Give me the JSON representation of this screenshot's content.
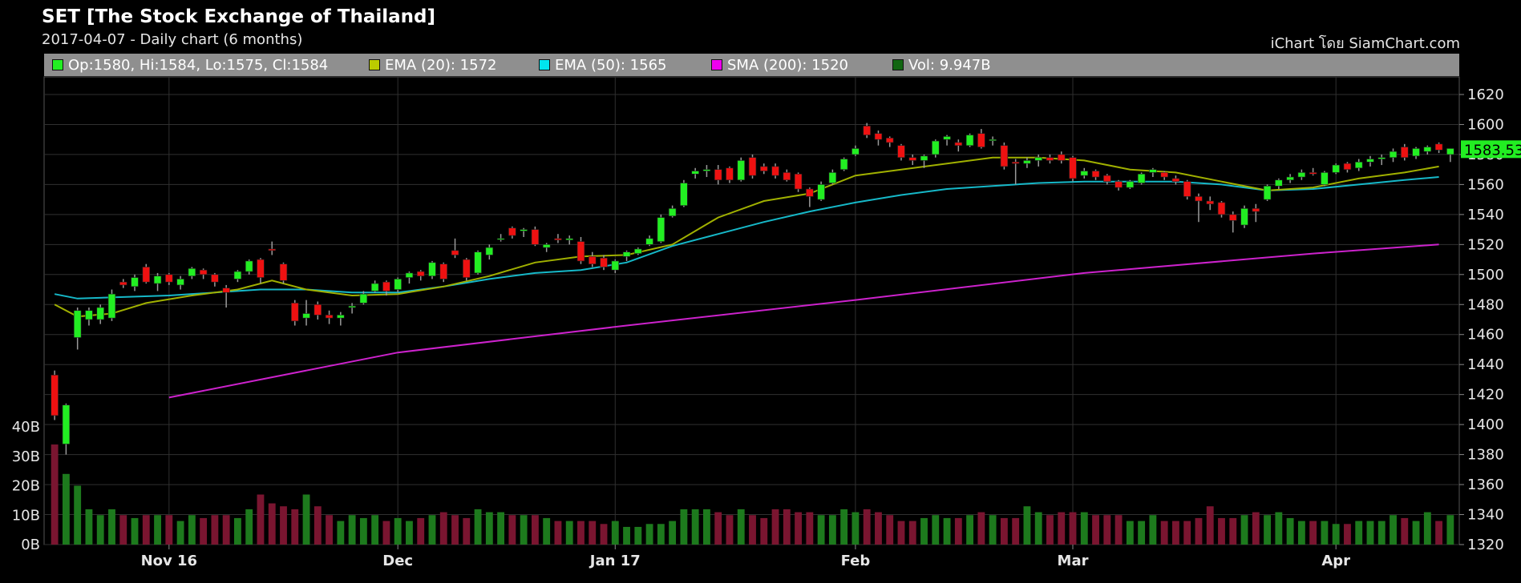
{
  "header": {
    "title": "SET [The Stock Exchange of Thailand]",
    "subtitle": "2017-04-07 - Daily chart (6 months)",
    "credit": "iChart โดย SiamChart.com"
  },
  "legend": [
    {
      "label": "Op:1580, Hi:1584, Lo:1575, Cl:1584",
      "color": "#22ee22"
    },
    {
      "label": "EMA (20): 1572",
      "color": "#bbcc00"
    },
    {
      "label": "EMA (50): 1565",
      "color": "#00e5ee"
    },
    {
      "label": "SMA (200): 1520",
      "color": "#ee00ee"
    },
    {
      "label": "Vol: 9.947B",
      "color": "#116611"
    }
  ],
  "price_tag": "1583.53",
  "colors": {
    "up": "#22ee22",
    "down": "#ee1111",
    "vol_up": "#1d7a1d",
    "vol_down": "#7a1530",
    "ema20": "#a0b000",
    "ema50": "#16b8c8",
    "sma200": "#cc22cc",
    "grid": "#303030",
    "price_tag_bg": "#22ee22"
  },
  "chart_data": {
    "type": "candlestick",
    "ylim": [
      1320,
      1620
    ],
    "y_ticks": [
      "1320",
      "1340",
      "1360",
      "1380",
      "1400",
      "1420",
      "1440",
      "1460",
      "1480",
      "1500",
      "1520",
      "1540",
      "1560",
      "1580",
      "1600",
      "1620"
    ],
    "vol_ticks": [
      "0B",
      "10B",
      "20B",
      "30B",
      "40B"
    ],
    "vol_lim": [
      0,
      40
    ],
    "x_ticks": [
      {
        "label": "Nov 16",
        "index": 10
      },
      {
        "label": "Dec",
        "index": 30
      },
      {
        "label": "Jan 17",
        "index": 49
      },
      {
        "label": "Feb",
        "index": 70
      },
      {
        "label": "Mar",
        "index": 89
      },
      {
        "label": "Apr",
        "index": 112
      }
    ],
    "candles": [
      {
        "o": 1433,
        "h": 1436,
        "l": 1403,
        "c": 1406,
        "v": 34
      },
      {
        "o": 1387,
        "h": 1414,
        "l": 1380,
        "c": 1413,
        "v": 24
      },
      {
        "o": 1458,
        "h": 1478,
        "l": 1450,
        "c": 1476,
        "v": 20
      },
      {
        "o": 1470,
        "h": 1478,
        "l": 1466,
        "c": 1476,
        "v": 12
      },
      {
        "o": 1470,
        "h": 1480,
        "l": 1467,
        "c": 1478,
        "v": 10
      },
      {
        "o": 1471,
        "h": 1490,
        "l": 1469,
        "c": 1487,
        "v": 12
      },
      {
        "o": 1495,
        "h": 1497,
        "l": 1491,
        "c": 1493,
        "v": 10
      },
      {
        "o": 1492,
        "h": 1500,
        "l": 1489,
        "c": 1498,
        "v": 9
      },
      {
        "o": 1505,
        "h": 1507,
        "l": 1494,
        "c": 1495,
        "v": 10
      },
      {
        "o": 1494,
        "h": 1501,
        "l": 1489,
        "c": 1499,
        "v": 10
      },
      {
        "o": 1500,
        "h": 1501,
        "l": 1493,
        "c": 1495,
        "v": 10
      },
      {
        "o": 1493,
        "h": 1499,
        "l": 1490,
        "c": 1497,
        "v": 8
      },
      {
        "o": 1499,
        "h": 1505,
        "l": 1497,
        "c": 1504,
        "v": 10
      },
      {
        "o": 1503,
        "h": 1504,
        "l": 1497,
        "c": 1500,
        "v": 9
      },
      {
        "o": 1500,
        "h": 1501,
        "l": 1492,
        "c": 1495,
        "v": 10
      },
      {
        "o": 1491,
        "h": 1493,
        "l": 1478,
        "c": 1488,
        "v": 10
      },
      {
        "o": 1497,
        "h": 1503,
        "l": 1495,
        "c": 1502,
        "v": 9
      },
      {
        "o": 1502,
        "h": 1510,
        "l": 1500,
        "c": 1509,
        "v": 12
      },
      {
        "o": 1510,
        "h": 1511,
        "l": 1494,
        "c": 1498,
        "v": 17
      },
      {
        "o": 1517,
        "h": 1522,
        "l": 1513,
        "c": 1516,
        "v": 14
      },
      {
        "o": 1507,
        "h": 1508,
        "l": 1494,
        "c": 1496,
        "v": 13
      },
      {
        "o": 1481,
        "h": 1483,
        "l": 1466,
        "c": 1469,
        "v": 12
      },
      {
        "o": 1471,
        "h": 1483,
        "l": 1466,
        "c": 1474,
        "v": 17
      },
      {
        "o": 1480,
        "h": 1482,
        "l": 1470,
        "c": 1473,
        "v": 13
      },
      {
        "o": 1473,
        "h": 1476,
        "l": 1467,
        "c": 1471,
        "v": 10
      },
      {
        "o": 1471,
        "h": 1475,
        "l": 1466,
        "c": 1473,
        "v": 8
      },
      {
        "o": 1478,
        "h": 1481,
        "l": 1474,
        "c": 1479,
        "v": 10
      },
      {
        "o": 1481,
        "h": 1489,
        "l": 1480,
        "c": 1487,
        "v": 9
      },
      {
        "o": 1489,
        "h": 1496,
        "l": 1488,
        "c": 1494,
        "v": 10
      },
      {
        "o": 1495,
        "h": 1496,
        "l": 1486,
        "c": 1489,
        "v": 8
      },
      {
        "o": 1490,
        "h": 1498,
        "l": 1488,
        "c": 1497,
        "v": 9
      },
      {
        "o": 1498,
        "h": 1502,
        "l": 1494,
        "c": 1501,
        "v": 8
      },
      {
        "o": 1502,
        "h": 1503,
        "l": 1496,
        "c": 1499,
        "v": 9
      },
      {
        "o": 1499,
        "h": 1509,
        "l": 1497,
        "c": 1508,
        "v": 10
      },
      {
        "o": 1507,
        "h": 1508,
        "l": 1495,
        "c": 1497,
        "v": 11
      },
      {
        "o": 1516,
        "h": 1524,
        "l": 1511,
        "c": 1513,
        "v": 10
      },
      {
        "o": 1510,
        "h": 1511,
        "l": 1496,
        "c": 1498,
        "v": 9
      },
      {
        "o": 1501,
        "h": 1516,
        "l": 1500,
        "c": 1515,
        "v": 12
      },
      {
        "o": 1513,
        "h": 1520,
        "l": 1510,
        "c": 1518,
        "v": 11
      },
      {
        "o": 1524,
        "h": 1527,
        "l": 1522,
        "c": 1524,
        "v": 11
      },
      {
        "o": 1531,
        "h": 1532,
        "l": 1524,
        "c": 1526,
        "v": 10
      },
      {
        "o": 1529,
        "h": 1531,
        "l": 1525,
        "c": 1530,
        "v": 10
      },
      {
        "o": 1530,
        "h": 1532,
        "l": 1519,
        "c": 1520,
        "v": 10
      },
      {
        "o": 1518,
        "h": 1521,
        "l": 1515,
        "c": 1520,
        "v": 9
      },
      {
        "o": 1524,
        "h": 1527,
        "l": 1521,
        "c": 1523,
        "v": 8
      },
      {
        "o": 1523,
        "h": 1526,
        "l": 1520,
        "c": 1524,
        "v": 8
      },
      {
        "o": 1522,
        "h": 1525,
        "l": 1507,
        "c": 1509,
        "v": 8
      },
      {
        "o": 1512,
        "h": 1515,
        "l": 1505,
        "c": 1507,
        "v": 8
      },
      {
        "o": 1511,
        "h": 1513,
        "l": 1503,
        "c": 1505,
        "v": 7
      },
      {
        "o": 1503,
        "h": 1510,
        "l": 1501,
        "c": 1509,
        "v": 8
      },
      {
        "o": 1512,
        "h": 1516,
        "l": 1509,
        "c": 1515,
        "v": 6
      },
      {
        "o": 1514,
        "h": 1518,
        "l": 1513,
        "c": 1517,
        "v": 6
      },
      {
        "o": 1520,
        "h": 1526,
        "l": 1519,
        "c": 1524,
        "v": 7
      },
      {
        "o": 1522,
        "h": 1540,
        "l": 1521,
        "c": 1538,
        "v": 7
      },
      {
        "o": 1539,
        "h": 1546,
        "l": 1538,
        "c": 1544,
        "v": 8
      },
      {
        "o": 1546,
        "h": 1563,
        "l": 1545,
        "c": 1561,
        "v": 12
      },
      {
        "o": 1567,
        "h": 1571,
        "l": 1564,
        "c": 1569,
        "v": 12
      },
      {
        "o": 1569,
        "h": 1573,
        "l": 1565,
        "c": 1570,
        "v": 12
      },
      {
        "o": 1570,
        "h": 1573,
        "l": 1560,
        "c": 1563,
        "v": 11
      },
      {
        "o": 1571,
        "h": 1572,
        "l": 1561,
        "c": 1563,
        "v": 10
      },
      {
        "o": 1563,
        "h": 1578,
        "l": 1562,
        "c": 1576,
        "v": 12
      },
      {
        "o": 1578,
        "h": 1580,
        "l": 1564,
        "c": 1566,
        "v": 10
      },
      {
        "o": 1572,
        "h": 1574,
        "l": 1567,
        "c": 1569,
        "v": 9
      },
      {
        "o": 1572,
        "h": 1574,
        "l": 1564,
        "c": 1566,
        "v": 12
      },
      {
        "o": 1568,
        "h": 1570,
        "l": 1562,
        "c": 1563,
        "v": 12
      },
      {
        "o": 1567,
        "h": 1568,
        "l": 1555,
        "c": 1557,
        "v": 11
      },
      {
        "o": 1557,
        "h": 1558,
        "l": 1545,
        "c": 1552,
        "v": 11
      },
      {
        "o": 1550,
        "h": 1562,
        "l": 1549,
        "c": 1560,
        "v": 10
      },
      {
        "o": 1561,
        "h": 1570,
        "l": 1560,
        "c": 1568,
        "v": 10
      },
      {
        "o": 1570,
        "h": 1578,
        "l": 1569,
        "c": 1577,
        "v": 12
      },
      {
        "o": 1580,
        "h": 1586,
        "l": 1579,
        "c": 1584,
        "v": 11
      },
      {
        "o": 1599,
        "h": 1601,
        "l": 1591,
        "c": 1593,
        "v": 12
      },
      {
        "o": 1594,
        "h": 1596,
        "l": 1586,
        "c": 1590,
        "v": 11
      },
      {
        "o": 1591,
        "h": 1592,
        "l": 1585,
        "c": 1588,
        "v": 10
      },
      {
        "o": 1586,
        "h": 1587,
        "l": 1576,
        "c": 1578,
        "v": 8
      },
      {
        "o": 1578,
        "h": 1580,
        "l": 1573,
        "c": 1576,
        "v": 8
      },
      {
        "o": 1576,
        "h": 1580,
        "l": 1571,
        "c": 1579,
        "v": 9
      },
      {
        "o": 1580,
        "h": 1590,
        "l": 1578,
        "c": 1589,
        "v": 10
      },
      {
        "o": 1590,
        "h": 1593,
        "l": 1586,
        "c": 1592,
        "v": 9
      },
      {
        "o": 1588,
        "h": 1590,
        "l": 1582,
        "c": 1586,
        "v": 9
      },
      {
        "o": 1586,
        "h": 1594,
        "l": 1585,
        "c": 1593,
        "v": 10
      },
      {
        "o": 1594,
        "h": 1597,
        "l": 1584,
        "c": 1585,
        "v": 11
      },
      {
        "o": 1590,
        "h": 1592,
        "l": 1586,
        "c": 1590,
        "v": 10
      },
      {
        "o": 1586,
        "h": 1588,
        "l": 1570,
        "c": 1572,
        "v": 9
      },
      {
        "o": 1575,
        "h": 1577,
        "l": 1560,
        "c": 1574,
        "v": 9
      },
      {
        "o": 1574,
        "h": 1578,
        "l": 1571,
        "c": 1576,
        "v": 13
      },
      {
        "o": 1576,
        "h": 1580,
        "l": 1572,
        "c": 1578,
        "v": 11
      },
      {
        "o": 1578,
        "h": 1580,
        "l": 1574,
        "c": 1576,
        "v": 10
      },
      {
        "o": 1580,
        "h": 1582,
        "l": 1574,
        "c": 1576,
        "v": 11
      },
      {
        "o": 1578,
        "h": 1579,
        "l": 1562,
        "c": 1564,
        "v": 11
      },
      {
        "o": 1566,
        "h": 1571,
        "l": 1564,
        "c": 1569,
        "v": 11
      },
      {
        "o": 1569,
        "h": 1570,
        "l": 1563,
        "c": 1565,
        "v": 10
      },
      {
        "o": 1566,
        "h": 1567,
        "l": 1560,
        "c": 1562,
        "v": 10
      },
      {
        "o": 1562,
        "h": 1563,
        "l": 1556,
        "c": 1558,
        "v": 10
      },
      {
        "o": 1558,
        "h": 1563,
        "l": 1557,
        "c": 1562,
        "v": 8
      },
      {
        "o": 1561,
        "h": 1568,
        "l": 1560,
        "c": 1567,
        "v": 8
      },
      {
        "o": 1568,
        "h": 1571,
        "l": 1565,
        "c": 1570,
        "v": 10
      },
      {
        "o": 1568,
        "h": 1569,
        "l": 1563,
        "c": 1565,
        "v": 8
      },
      {
        "o": 1564,
        "h": 1566,
        "l": 1560,
        "c": 1562,
        "v": 8
      },
      {
        "o": 1562,
        "h": 1563,
        "l": 1550,
        "c": 1552,
        "v": 8
      },
      {
        "o": 1552,
        "h": 1554,
        "l": 1535,
        "c": 1549,
        "v": 9
      },
      {
        "o": 1549,
        "h": 1552,
        "l": 1543,
        "c": 1547,
        "v": 13
      },
      {
        "o": 1548,
        "h": 1549,
        "l": 1538,
        "c": 1540,
        "v": 9
      },
      {
        "o": 1540,
        "h": 1542,
        "l": 1528,
        "c": 1536,
        "v": 9
      },
      {
        "o": 1533,
        "h": 1546,
        "l": 1531,
        "c": 1544,
        "v": 10
      },
      {
        "o": 1544,
        "h": 1547,
        "l": 1535,
        "c": 1542,
        "v": 11
      },
      {
        "o": 1550,
        "h": 1560,
        "l": 1549,
        "c": 1559,
        "v": 10
      },
      {
        "o": 1559,
        "h": 1564,
        "l": 1557,
        "c": 1563,
        "v": 11
      },
      {
        "o": 1563,
        "h": 1567,
        "l": 1561,
        "c": 1565,
        "v": 9
      },
      {
        "o": 1565,
        "h": 1570,
        "l": 1563,
        "c": 1568,
        "v": 8
      },
      {
        "o": 1568,
        "h": 1571,
        "l": 1566,
        "c": 1567,
        "v": 8
      },
      {
        "o": 1560,
        "h": 1569,
        "l": 1559,
        "c": 1568,
        "v": 8
      },
      {
        "o": 1568,
        "h": 1574,
        "l": 1567,
        "c": 1573,
        "v": 7
      },
      {
        "o": 1574,
        "h": 1575,
        "l": 1568,
        "c": 1570,
        "v": 7
      },
      {
        "o": 1571,
        "h": 1577,
        "l": 1569,
        "c": 1575,
        "v": 8
      },
      {
        "o": 1575,
        "h": 1579,
        "l": 1572,
        "c": 1577,
        "v": 8
      },
      {
        "o": 1577,
        "h": 1580,
        "l": 1573,
        "c": 1578,
        "v": 8
      },
      {
        "o": 1578,
        "h": 1584,
        "l": 1575,
        "c": 1582,
        "v": 10
      },
      {
        "o": 1585,
        "h": 1587,
        "l": 1576,
        "c": 1578,
        "v": 9
      },
      {
        "o": 1579,
        "h": 1585,
        "l": 1577,
        "c": 1584,
        "v": 8
      },
      {
        "o": 1582,
        "h": 1586,
        "l": 1580,
        "c": 1585,
        "v": 11
      },
      {
        "o": 1587,
        "h": 1588,
        "l": 1581,
        "c": 1583,
        "v": 8
      },
      {
        "o": 1580,
        "h": 1584,
        "l": 1575,
        "c": 1584,
        "v": 10
      }
    ],
    "ema20": [
      [
        0,
        1480
      ],
      [
        2,
        1472
      ],
      [
        5,
        1474
      ],
      [
        8,
        1481
      ],
      [
        12,
        1486
      ],
      [
        16,
        1490
      ],
      [
        19,
        1496
      ],
      [
        22,
        1490
      ],
      [
        26,
        1486
      ],
      [
        30,
        1487
      ],
      [
        34,
        1492
      ],
      [
        38,
        1499
      ],
      [
        42,
        1508
      ],
      [
        46,
        1512
      ],
      [
        50,
        1513
      ],
      [
        54,
        1520
      ],
      [
        58,
        1538
      ],
      [
        62,
        1549
      ],
      [
        66,
        1554
      ],
      [
        70,
        1566
      ],
      [
        74,
        1570
      ],
      [
        78,
        1574
      ],
      [
        82,
        1578
      ],
      [
        86,
        1578
      ],
      [
        90,
        1576
      ],
      [
        94,
        1570
      ],
      [
        98,
        1568
      ],
      [
        102,
        1562
      ],
      [
        106,
        1556
      ],
      [
        110,
        1558
      ],
      [
        114,
        1564
      ],
      [
        118,
        1568
      ],
      [
        121,
        1572
      ]
    ],
    "ema50": [
      [
        0,
        1487
      ],
      [
        2,
        1484
      ],
      [
        6,
        1485
      ],
      [
        10,
        1486
      ],
      [
        14,
        1488
      ],
      [
        18,
        1490
      ],
      [
        22,
        1490
      ],
      [
        26,
        1488
      ],
      [
        30,
        1488
      ],
      [
        34,
        1492
      ],
      [
        38,
        1497
      ],
      [
        42,
        1501
      ],
      [
        46,
        1503
      ],
      [
        50,
        1508
      ],
      [
        54,
        1519
      ],
      [
        58,
        1527
      ],
      [
        62,
        1535
      ],
      [
        66,
        1542
      ],
      [
        70,
        1548
      ],
      [
        74,
        1553
      ],
      [
        78,
        1557
      ],
      [
        82,
        1559
      ],
      [
        86,
        1561
      ],
      [
        90,
        1562
      ],
      [
        94,
        1562
      ],
      [
        98,
        1562
      ],
      [
        102,
        1560
      ],
      [
        106,
        1556
      ],
      [
        110,
        1557
      ],
      [
        114,
        1560
      ],
      [
        118,
        1563
      ],
      [
        121,
        1565
      ]
    ],
    "sma200": [
      [
        10,
        1418
      ],
      [
        30,
        1448
      ],
      [
        50,
        1466
      ],
      [
        70,
        1483
      ],
      [
        90,
        1501
      ],
      [
        110,
        1514
      ],
      [
        121,
        1520
      ]
    ]
  }
}
